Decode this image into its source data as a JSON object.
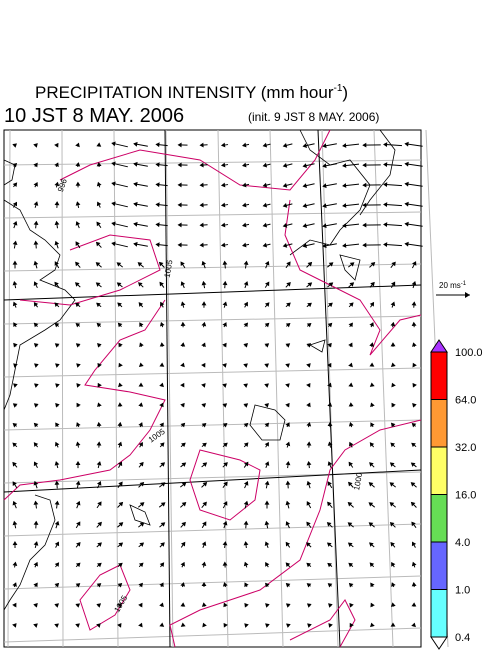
{
  "header": {
    "title": "PRECIPITATION INTENSITY (mm hour",
    "title_sup": "-1",
    "title_end": ")",
    "valid_time": "10 JST 8 MAY. 2006",
    "init_time": "(init. 9 JST 8 MAY. 2006)"
  },
  "wind_scale": {
    "label": "20 ms",
    "label_sup": "-1"
  },
  "isobar_labels": [
    "1005",
    "1005",
    "1000",
    "1005",
    "996"
  ],
  "colorbar": {
    "levels": [
      {
        "label": "100.0",
        "color": "#ff0000"
      },
      {
        "label": "64.0",
        "color": "#ff9933"
      },
      {
        "label": "32.0",
        "color": "#ffff66"
      },
      {
        "label": "16.0",
        "color": "#66dd55"
      },
      {
        "label": "4.0",
        "color": "#6666ff"
      },
      {
        "label": "1.0",
        "color": "#66ffff"
      },
      {
        "label": "0.4",
        "color": "#ffffff"
      }
    ],
    "over_color": "#aa33ff"
  }
}
